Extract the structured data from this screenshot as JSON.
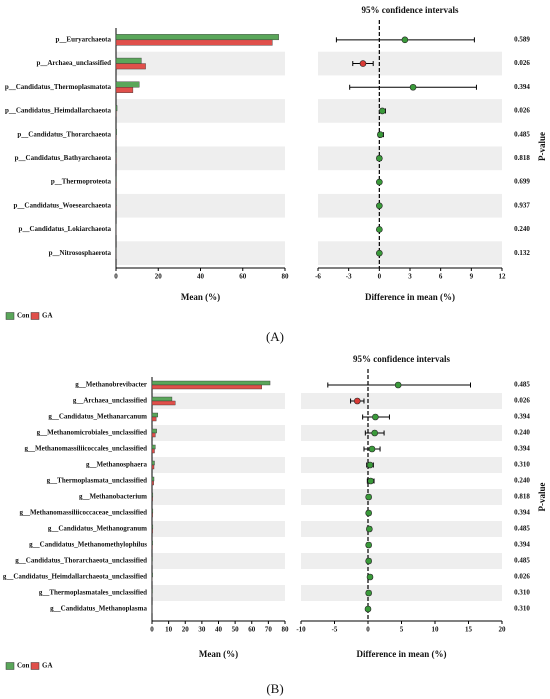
{
  "chart_data": [
    {
      "type": "bar",
      "orientation": "horizontal",
      "panel_label": "(A)",
      "categories": [
        "p__Euryarchaeota",
        "p__Archaea_unclassified",
        "p__Candidatus_Thermoplasmatota",
        "p__Candidatus_Heimdallarchaeota",
        "p__Candidatus_Thorarchaeota",
        "p__Candidatus_Bathyarchaeota",
        "p__Thermoproteota",
        "p__Candidatus_Woesearchaeota",
        "p__Candidatus_Lokiarchaeota",
        "p__Nitrososphaerota"
      ],
      "series": [
        {
          "name": "Con",
          "color": "#5aa65a",
          "values": [
            77,
            12,
            11,
            0.5,
            0.3,
            0.2,
            0.2,
            0.2,
            0.1,
            0.1
          ]
        },
        {
          "name": "GA",
          "color": "#e0504b",
          "values": [
            74,
            14,
            8,
            0.2,
            0.2,
            0.2,
            0.2,
            0.2,
            0.1,
            0.1
          ]
        }
      ],
      "xlabel": "Mean (%)",
      "xlim": [
        0,
        80
      ],
      "xticks": [
        0,
        20,
        40,
        60,
        80
      ]
    },
    {
      "type": "errorbar",
      "title": "95% confidence intervals",
      "xlabel": "Difference in mean (%)",
      "y2label": "P-value",
      "values": [
        2.5,
        -1.6,
        3.3,
        0.3,
        0.1,
        0.0,
        0.0,
        0.0,
        0.0,
        0.0
      ],
      "lower": [
        -4.2,
        -2.6,
        -2.9,
        0.1,
        -0.1,
        -0.2,
        -0.15,
        -0.1,
        -0.1,
        -0.1
      ],
      "upper": [
        9.3,
        -0.6,
        9.5,
        0.6,
        0.4,
        0.2,
        0.15,
        0.1,
        0.1,
        0.1
      ],
      "point_colors": [
        "#3a9a3a",
        "#d93a35",
        "#3a9a3a",
        "#3a9a3a",
        "#3a9a3a",
        "#3a9a3a",
        "#3a9a3a",
        "#3a9a3a",
        "#3a9a3a",
        "#3a9a3a"
      ],
      "p_values": [
        0.589,
        0.026,
        0.394,
        0.026,
        0.485,
        0.818,
        0.699,
        0.937,
        0.24,
        0.132
      ],
      "p_value_labels": [
        "0.589",
        "0.026",
        "0.394",
        "0.026",
        "0.485",
        "0.818",
        "0.699",
        "0.937",
        "0.240",
        "0.132"
      ],
      "xlim": [
        -6,
        12
      ],
      "xticks": [
        -6,
        -3,
        0,
        3,
        6,
        9,
        12
      ]
    },
    {
      "type": "bar",
      "orientation": "horizontal",
      "panel_label": "(B)",
      "categories": [
        "g__Methanobrevibacter",
        "g__Archaea_unclassified",
        "g__Candidatus_Methanarcanum",
        "g__Methanomicrobiales_unclassified",
        "g__Methanomassiliicoccales_unclassified",
        "g__Methanosphaera",
        "g__Thermoplasmata_unclassified",
        "g__Methanobacterium",
        "g__Methanomassiliicoccaceae_unclassified",
        "g__Candidatus_Methanogranum",
        "g__Candidatus_Methanomethylophilus",
        "g__Candidatus_Thorarchaeota_unclassified",
        "g__Candidatus_Heimdallarchaeota_unclassified",
        "g__Thermoplasmatales_unclassified",
        "g__Candidatus_Methanoplasma"
      ],
      "series": [
        {
          "name": "Con",
          "color": "#5aa65a",
          "values": [
            71,
            12,
            3.5,
            2.8,
            2.0,
            1.5,
            1.2,
            0.5,
            0.5,
            0.5,
            0.4,
            0.3,
            0.4,
            0.3,
            0.2
          ]
        },
        {
          "name": "GA",
          "color": "#e0504b",
          "values": [
            66,
            14,
            2.5,
            2.0,
            1.5,
            1.2,
            1.0,
            0.4,
            0.4,
            0.4,
            0.3,
            0.2,
            0.1,
            0.2,
            0.2
          ]
        }
      ],
      "xlabel": "Mean (%)",
      "xlim": [
        0,
        80
      ],
      "xticks": [
        0,
        10,
        20,
        30,
        40,
        50,
        60,
        70,
        80
      ]
    },
    {
      "type": "errorbar",
      "title": "95% confidence intervals",
      "xlabel": "Difference in mean (%)",
      "y2label": "P-value",
      "values": [
        4.5,
        -1.6,
        1.1,
        1.0,
        0.6,
        0.3,
        0.4,
        0.1,
        0.1,
        0.2,
        0.1,
        0.1,
        0.3,
        0.1,
        0.0
      ],
      "lower": [
        -6,
        -2.6,
        -0.8,
        -0.4,
        -0.6,
        -0.2,
        -0.1,
        -0.2,
        -0.2,
        -0.1,
        -0.2,
        -0.2,
        0.1,
        -0.2,
        -0.2
      ],
      "upper": [
        15.3,
        -0.6,
        3.2,
        2.4,
        1.8,
        0.8,
        0.9,
        0.4,
        0.4,
        0.5,
        0.4,
        0.4,
        0.6,
        0.4,
        0.2
      ],
      "point_colors": [
        "#3a9a3a",
        "#d93a35",
        "#3a9a3a",
        "#3a9a3a",
        "#3a9a3a",
        "#3a9a3a",
        "#3a9a3a",
        "#3a9a3a",
        "#3a9a3a",
        "#3a9a3a",
        "#3a9a3a",
        "#3a9a3a",
        "#3a9a3a",
        "#3a9a3a",
        "#3a9a3a"
      ],
      "p_values": [
        0.485,
        0.026,
        0.394,
        0.24,
        0.394,
        0.31,
        0.24,
        0.818,
        0.394,
        0.485,
        0.394,
        0.485,
        0.026,
        0.31,
        0.31
      ],
      "p_value_labels": [
        "0.485",
        "0.026",
        "0.394",
        "0.240",
        "0.394",
        "0.310",
        "0.240",
        "0.818",
        "0.394",
        "0.485",
        "0.394",
        "0.485",
        "0.026",
        "0.310",
        "0.310"
      ],
      "xlim": [
        -10,
        20
      ],
      "xticks": [
        -10,
        -5,
        0,
        5,
        10,
        15,
        20
      ]
    }
  ]
}
